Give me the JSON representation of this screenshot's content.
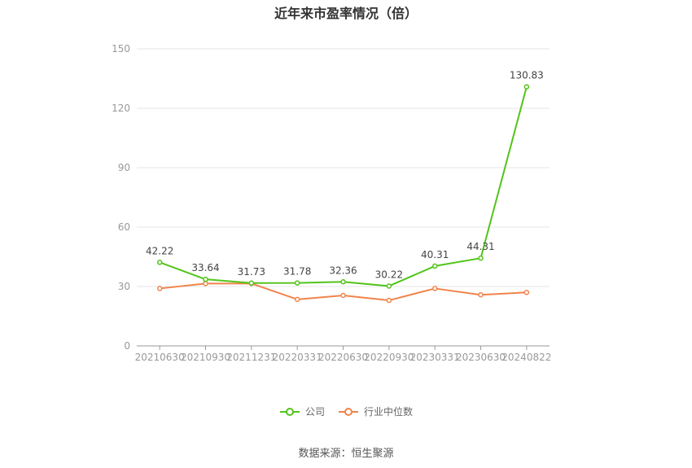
{
  "chart_data": {
    "type": "line",
    "title": "近年来市盈率情况（倍）",
    "categories": [
      "20210630",
      "20210930",
      "20211231",
      "20220331",
      "20220630",
      "20220930",
      "20230331",
      "20230630",
      "20240822"
    ],
    "series": [
      {
        "name": "公司",
        "color": "#52c41a",
        "values": [
          42.22,
          33.64,
          31.73,
          31.78,
          32.36,
          30.22,
          40.31,
          44.31,
          130.83
        ],
        "labels": [
          "42.22",
          "33.64",
          "31.73",
          "31.78",
          "32.36",
          "30.22",
          "40.31",
          "44.31",
          "130.83"
        ]
      },
      {
        "name": "行业中位数",
        "color": "#f0844a",
        "values": [
          29.0,
          31.5,
          31.5,
          23.5,
          25.5,
          23.0,
          29.0,
          25.8,
          27.0
        ]
      }
    ],
    "yticks": [
      "0",
      "30",
      "60",
      "90",
      "120",
      "150"
    ],
    "ylim": [
      0,
      150
    ],
    "grid": true,
    "legend_position": "bottom"
  },
  "source": "数据来源：恒生聚源"
}
